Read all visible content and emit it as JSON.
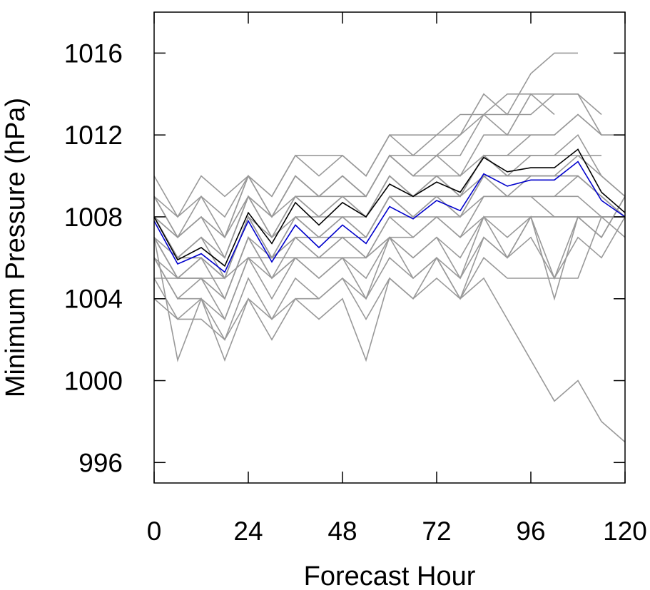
{
  "chart_data": {
    "type": "line",
    "title": "",
    "xlabel": "Forecast Hour",
    "ylabel": "Minimum Pressure (hPa)",
    "xlim": [
      0,
      120
    ],
    "ylim": [
      995,
      1018
    ],
    "x_ticks": [
      0,
      24,
      48,
      72,
      96,
      120
    ],
    "y_ticks": [
      996,
      1000,
      1004,
      1008,
      1012,
      1016
    ],
    "grid": false,
    "legend": "none",
    "colors": {
      "member": "#999999",
      "mean": "#000000",
      "median": "#0000cc",
      "axis": "#000000"
    },
    "series": [
      {
        "role": "member",
        "x": [
          0,
          6,
          12,
          18,
          24,
          30,
          36,
          42,
          48,
          54,
          60,
          66,
          72,
          78,
          84,
          90,
          96,
          102,
          108,
          114,
          120
        ],
        "y": [
          1010,
          1008,
          1010,
          1009,
          1010,
          1009,
          1011,
          1010,
          1011,
          1010,
          1012,
          1012,
          1012,
          1012,
          1014,
          1013,
          1015,
          1016,
          1016,
          null,
          null
        ]
      },
      {
        "role": "member",
        "x": [
          0,
          6,
          12,
          18,
          24,
          30,
          36,
          42,
          48,
          54,
          60,
          66,
          72,
          78,
          84,
          90,
          96,
          102,
          108,
          114,
          120
        ],
        "y": [
          1009,
          1008,
          1009,
          1008,
          1010,
          1009,
          1011,
          1011,
          1011,
          1010,
          1012,
          1011,
          1012,
          1013,
          1013,
          1014,
          1014,
          1014,
          1014,
          1013,
          null
        ]
      },
      {
        "role": "member",
        "x": [
          0,
          6,
          12,
          18,
          24,
          30,
          36,
          42,
          48,
          54,
          60,
          66,
          72,
          78,
          84,
          90,
          96,
          102,
          108,
          114,
          120
        ],
        "y": [
          1009,
          1007,
          1008,
          1007,
          1010,
          1008,
          1010,
          1009,
          1010,
          1009,
          1011,
          1010,
          1011,
          1012,
          1013,
          1012,
          1014,
          1013,
          null,
          null,
          null
        ]
      },
      {
        "role": "member",
        "x": [
          0,
          6,
          12,
          18,
          24,
          30,
          36,
          42,
          48,
          54,
          60,
          66,
          72,
          78,
          84,
          90,
          96,
          102,
          108,
          114,
          120
        ],
        "y": [
          1009,
          1007,
          1009,
          1007,
          1010,
          1008,
          1010,
          1009,
          1010,
          1009,
          1011,
          1011,
          1011,
          1011,
          1013,
          1013,
          1013,
          1014,
          1014,
          1012,
          1012
        ]
      },
      {
        "role": "member",
        "x": [
          0,
          6,
          12,
          18,
          24,
          30,
          36,
          42,
          48,
          54,
          60,
          66,
          72,
          78,
          84,
          90,
          96,
          102,
          108,
          114,
          120
        ],
        "y": [
          1008,
          1007,
          1008,
          1007,
          1009,
          1008,
          1010,
          1009,
          1010,
          1009,
          1011,
          1010,
          1011,
          1010,
          1012,
          1012,
          1012,
          1012,
          1013,
          1012,
          1012
        ]
      },
      {
        "role": "member",
        "x": [
          0,
          6,
          12,
          18,
          24,
          30,
          36,
          42,
          48,
          54,
          60,
          66,
          72,
          78,
          84,
          90,
          96,
          102,
          108,
          114,
          120
        ],
        "y": [
          1008,
          1007,
          1008,
          1006,
          1009,
          1008,
          1009,
          1009,
          1009,
          1009,
          1011,
          1010,
          1010,
          1010,
          1011,
          1011,
          1012,
          1012,
          1013,
          1012,
          null
        ]
      },
      {
        "role": "member",
        "x": [
          0,
          6,
          12,
          18,
          24,
          30,
          36,
          42,
          48,
          54,
          60,
          66,
          72,
          78,
          84,
          90,
          96,
          102,
          108,
          114,
          120
        ],
        "y": [
          1008,
          1006,
          1007,
          1006,
          1009,
          1007,
          1009,
          1008,
          1009,
          1008,
          1010,
          1009,
          1010,
          1009,
          1011,
          1011,
          1011,
          1011,
          1011,
          1011,
          null
        ]
      },
      {
        "role": "member",
        "x": [
          0,
          6,
          12,
          18,
          24,
          30,
          36,
          42,
          48,
          54,
          60,
          66,
          72,
          78,
          84,
          90,
          96,
          102,
          108,
          114,
          120
        ],
        "y": [
          1008,
          1006,
          1007,
          1006,
          1009,
          1007,
          1009,
          1008,
          1009,
          1008,
          1010,
          1009,
          1010,
          1009,
          1011,
          1010,
          1011,
          1011,
          1012,
          1010,
          1009
        ]
      },
      {
        "role": "member",
        "x": [
          0,
          6,
          12,
          18,
          24,
          30,
          36,
          42,
          48,
          54,
          60,
          66,
          72,
          78,
          84,
          90,
          96,
          102,
          108,
          114,
          120
        ],
        "y": [
          1008,
          1006,
          1007,
          1005,
          1008,
          1007,
          1008,
          1008,
          1008,
          1008,
          1010,
          1009,
          1010,
          1009,
          1011,
          1010,
          1010,
          1010,
          1011,
          1010,
          1009
        ]
      },
      {
        "role": "member",
        "x": [
          0,
          6,
          12,
          18,
          24,
          30,
          36,
          42,
          48,
          54,
          60,
          66,
          72,
          78,
          84,
          90,
          96,
          102,
          108,
          114,
          120
        ],
        "y": [
          1008,
          1006,
          1006,
          1005,
          1008,
          1006,
          1008,
          1007,
          1008,
          1007,
          1009,
          1009,
          1009,
          1009,
          1010,
          1010,
          1010,
          1010,
          1010,
          1009,
          1008
        ]
      },
      {
        "role": "member",
        "x": [
          0,
          6,
          12,
          18,
          24,
          30,
          36,
          42,
          48,
          54,
          60,
          66,
          72,
          78,
          84,
          90,
          96,
          102,
          108,
          114,
          120
        ],
        "y": [
          1007,
          1006,
          1006,
          1005,
          1008,
          1006,
          1008,
          1007,
          1008,
          1007,
          1009,
          1008,
          1009,
          1008,
          1010,
          1009,
          1010,
          1010,
          1010,
          1009,
          1008
        ]
      },
      {
        "role": "member",
        "x": [
          0,
          6,
          12,
          18,
          24,
          30,
          36,
          42,
          48,
          54,
          60,
          66,
          72,
          78,
          84,
          90,
          96,
          102,
          108,
          114,
          120
        ],
        "y": [
          1007,
          1005,
          1006,
          1005,
          1008,
          1006,
          1007,
          1007,
          1007,
          1007,
          1009,
          1008,
          1009,
          1008,
          1010,
          1009,
          1009,
          1009,
          1010,
          1009,
          1008
        ]
      },
      {
        "role": "member",
        "x": [
          0,
          6,
          12,
          18,
          24,
          30,
          36,
          42,
          48,
          54,
          60,
          66,
          72,
          78,
          84,
          90,
          96,
          102,
          108,
          114,
          120
        ],
        "y": [
          1007,
          1005,
          1006,
          1004,
          1007,
          1006,
          1007,
          1006,
          1007,
          1006,
          1008,
          1008,
          1008,
          1008,
          1009,
          1009,
          1009,
          1009,
          1009,
          1008,
          1008
        ]
      },
      {
        "role": "member",
        "x": [
          0,
          6,
          12,
          18,
          24,
          30,
          36,
          42,
          48,
          54,
          60,
          66,
          72,
          78,
          84,
          90,
          96,
          102,
          108,
          114,
          120
        ],
        "y": [
          1007,
          1005,
          1005,
          1004,
          1007,
          1005,
          1007,
          1006,
          1007,
          1006,
          1008,
          1007,
          1008,
          1007,
          1009,
          1009,
          1009,
          1008,
          1008,
          1007,
          1009
        ]
      },
      {
        "role": "member",
        "x": [
          0,
          6,
          12,
          18,
          24,
          30,
          36,
          42,
          48,
          54,
          60,
          66,
          72,
          78,
          84,
          90,
          96,
          102,
          108,
          114,
          120
        ],
        "y": [
          1006,
          1005,
          1005,
          1004,
          1007,
          1005,
          1006,
          1006,
          1006,
          1006,
          1007,
          1007,
          1008,
          1007,
          1008,
          1008,
          1008,
          1008,
          1008,
          1008,
          1008
        ]
      },
      {
        "role": "member",
        "x": [
          0,
          6,
          12,
          18,
          24,
          30,
          36,
          42,
          48,
          54,
          60,
          66,
          72,
          78,
          84,
          90,
          96,
          102,
          108,
          114,
          120
        ],
        "y": [
          1006,
          1004,
          1005,
          1003,
          1006,
          1005,
          1006,
          1005,
          1006,
          1005,
          1007,
          1006,
          1007,
          1006,
          1008,
          1007,
          1008,
          1005,
          1008,
          1007,
          1009
        ]
      },
      {
        "role": "member",
        "x": [
          0,
          6,
          12,
          18,
          24,
          30,
          36,
          42,
          48,
          54,
          60,
          66,
          72,
          78,
          84,
          90,
          96,
          102,
          108,
          114,
          120
        ],
        "y": [
          1005,
          1005,
          1005,
          1005,
          1006,
          1006,
          1006,
          1006,
          1006,
          1006,
          1007,
          1005,
          1006,
          1005,
          1008,
          1006,
          1008,
          1004,
          1008,
          1008,
          1008
        ]
      },
      {
        "role": "member",
        "x": [
          0,
          6,
          12,
          18,
          24,
          30,
          36,
          42,
          48,
          54,
          60,
          66,
          72,
          78,
          84,
          90,
          96,
          102,
          108,
          114,
          120
        ],
        "y": [
          1006,
          1004,
          1004,
          1003,
          1006,
          1004,
          1006,
          1005,
          1006,
          1004,
          1007,
          1006,
          1007,
          1005,
          1007,
          1006,
          1007,
          1005,
          1005,
          1008,
          1007
        ]
      },
      {
        "role": "member",
        "x": [
          0,
          6,
          12,
          18,
          24,
          30,
          36,
          42,
          48,
          54,
          60,
          66,
          72,
          78,
          84,
          90,
          96,
          102,
          108,
          114,
          120
        ],
        "y": [
          1005,
          1003,
          1004,
          1002,
          1005,
          1003,
          1005,
          1004,
          1005,
          1004,
          1006,
          1005,
          1006,
          1004,
          1005,
          1003,
          1001,
          999,
          1000,
          998,
          997
        ]
      },
      {
        "role": "member",
        "x": [
          0,
          6,
          12,
          18,
          24,
          30,
          36,
          42,
          48,
          54,
          60,
          66,
          72,
          78,
          84,
          90,
          96,
          102,
          108,
          114,
          120
        ],
        "y": [
          1004,
          1003,
          1003,
          1002,
          1004,
          1003,
          1004,
          1004,
          1005,
          1003,
          1005,
          1004,
          1005,
          1004,
          1006,
          1005,
          1005,
          1005,
          1007,
          1006,
          1008
        ]
      },
      {
        "role": "member",
        "x": [
          0,
          6,
          12,
          18,
          24,
          30,
          36,
          42,
          48,
          54,
          60,
          66,
          72,
          78,
          84,
          90,
          96,
          102,
          108,
          114,
          120
        ],
        "y": [
          1007,
          1001,
          1004,
          1001,
          1004,
          1002,
          1004,
          1003,
          1004,
          1001,
          1005,
          1004,
          1006,
          1004,
          1007,
          1006,
          1008,
          1008,
          1008,
          1008,
          1008
        ]
      },
      {
        "role": "mean",
        "x": [
          0,
          6,
          12,
          18,
          24,
          30,
          36,
          42,
          48,
          54,
          60,
          66,
          72,
          78,
          84,
          90,
          96,
          102,
          108,
          114,
          120
        ],
        "y": [
          1008,
          1005.9,
          1006.5,
          1005.6,
          1008.2,
          1006.7,
          1008.7,
          1007.6,
          1008.7,
          1008,
          1009.6,
          1009,
          1009.7,
          1009.2,
          1010.9,
          1010.2,
          1010.4,
          1010.4,
          1011.3,
          1009.2,
          1008.2
        ]
      },
      {
        "role": "median",
        "x": [
          0,
          6,
          12,
          18,
          24,
          30,
          36,
          42,
          48,
          54,
          60,
          66,
          72,
          78,
          84,
          90,
          96,
          102,
          108,
          114,
          120
        ],
        "y": [
          1007.8,
          1005.7,
          1006.2,
          1005.3,
          1007.8,
          1005.8,
          1007.6,
          1006.5,
          1007.6,
          1006.7,
          1008.5,
          1007.9,
          1008.8,
          1008.3,
          1010.1,
          1009.5,
          1009.8,
          1009.8,
          1010.7,
          1008.8,
          1008
        ]
      }
    ]
  }
}
